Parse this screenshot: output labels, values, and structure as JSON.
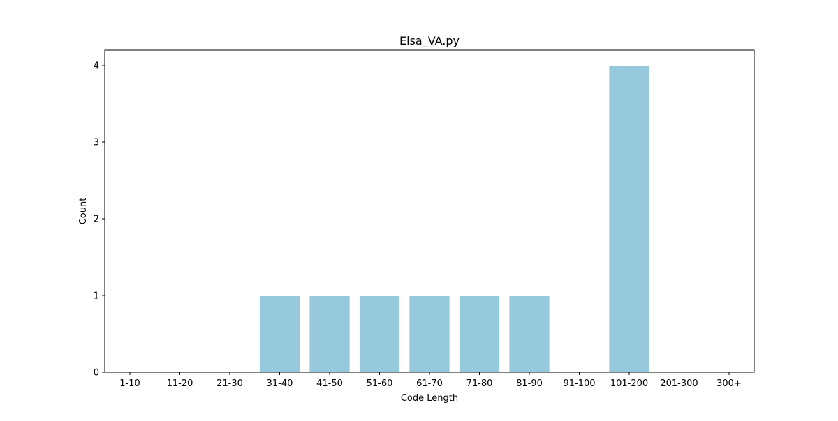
{
  "chart_data": {
    "type": "bar",
    "title": "Elsa_VA.py",
    "xlabel": "Code Length",
    "ylabel": "Count",
    "categories": [
      "1-10",
      "11-20",
      "21-30",
      "31-40",
      "41-50",
      "51-60",
      "61-70",
      "71-80",
      "81-90",
      "91-100",
      "101-200",
      "201-300",
      "300+"
    ],
    "values": [
      0,
      0,
      0,
      1,
      1,
      1,
      1,
      1,
      1,
      0,
      4,
      0,
      0
    ],
    "ylim": [
      0,
      4.2
    ],
    "yticks": [
      0,
      1,
      2,
      3,
      4
    ],
    "bar_color": "#96c9dc",
    "grid": false,
    "legend": "none"
  }
}
